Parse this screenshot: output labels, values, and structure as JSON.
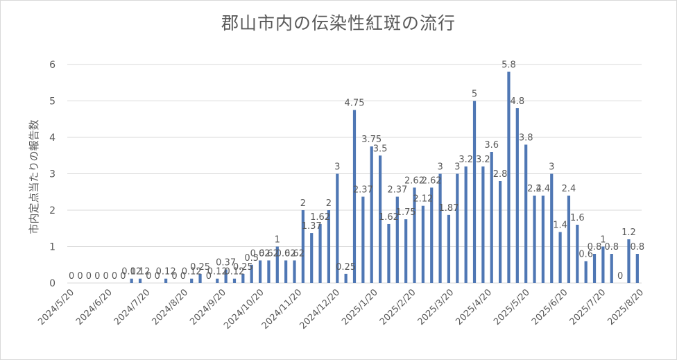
{
  "chart_data": {
    "type": "bar",
    "title": "郡山市内の伝染性紅斑の流行",
    "ylabel": "市内定点当たりの報告数",
    "xlabel": "",
    "ylim": [
      0,
      6
    ],
    "y_ticks": [
      0,
      1,
      2,
      3,
      4,
      5,
      6
    ],
    "grid": true,
    "legend": "none",
    "colors": {
      "bar": "#4f77b4",
      "grid": "#d9d9d9",
      "text": "#595959"
    },
    "x_tick_labels": [
      "2024/5/20",
      "2024/6/20",
      "2024/7/20",
      "2024/8/20",
      "2024/9/20",
      "2024/10/20",
      "2024/11/20",
      "2024/12/20",
      "2025/1/20",
      "2025/2/20",
      "2025/3/20",
      "2025/4/20",
      "2025/5/20",
      "2025/6/20",
      "2025/7/20",
      "2025/8/20"
    ],
    "x_tick_positions": [
      0,
      4.43,
      8.86,
      13.29,
      17.72,
      22.15,
      26.57,
      31.0,
      35.43,
      39.86,
      44.29,
      48.72,
      53.15,
      57.58,
      62.01,
      66.44
    ],
    "values": [
      0,
      0,
      0,
      0,
      0,
      0,
      0,
      0.12,
      0.12,
      0,
      0,
      0.12,
      0,
      0,
      0.12,
      0.25,
      0,
      0.12,
      0.37,
      0.12,
      0.25,
      0.5,
      0.62,
      0.62,
      1,
      0.62,
      0.62,
      2,
      1.37,
      1.62,
      2,
      3,
      0.25,
      4.75,
      2.37,
      3.75,
      3.5,
      1.62,
      2.37,
      1.75,
      2.62,
      2.12,
      2.62,
      3,
      1.87,
      3,
      3.2,
      5,
      3.2,
      3.6,
      2.8,
      5.8,
      4.8,
      3.8,
      2.4,
      2.4,
      3,
      1.4,
      2.4,
      1.6,
      0.6,
      0.8,
      1,
      0.8,
      0,
      1.2,
      0.8
    ],
    "data_labels": [
      "0",
      "0",
      "0",
      "0",
      "0",
      "0",
      "0",
      "0.12",
      "0.12",
      "0",
      "0",
      "0.12",
      "0",
      "0",
      "0.12",
      "0.25",
      "0",
      "0.12",
      "0.37",
      "0.12",
      "0.25",
      "0.5",
      "0.62",
      "0.62",
      "1",
      "0.62",
      "0.62",
      "2",
      "1.37",
      "1.62",
      "2",
      "3",
      "0.25",
      "4.75",
      "2.37",
      "3.75",
      "3.5",
      "1.62",
      "2.37",
      "1.75",
      "2.62",
      "2.12",
      "2.62",
      "3",
      "1.87",
      "3",
      "3.2",
      "5",
      "3.2",
      "3.6",
      "2.8",
      "5.8",
      "4.8",
      "3.8",
      "2.4",
      "2.4",
      "3",
      "1.4",
      "2.4",
      "1.6",
      "0.6",
      "0.8",
      "1",
      "0.8",
      "0",
      "1.2",
      "0.8"
    ]
  }
}
